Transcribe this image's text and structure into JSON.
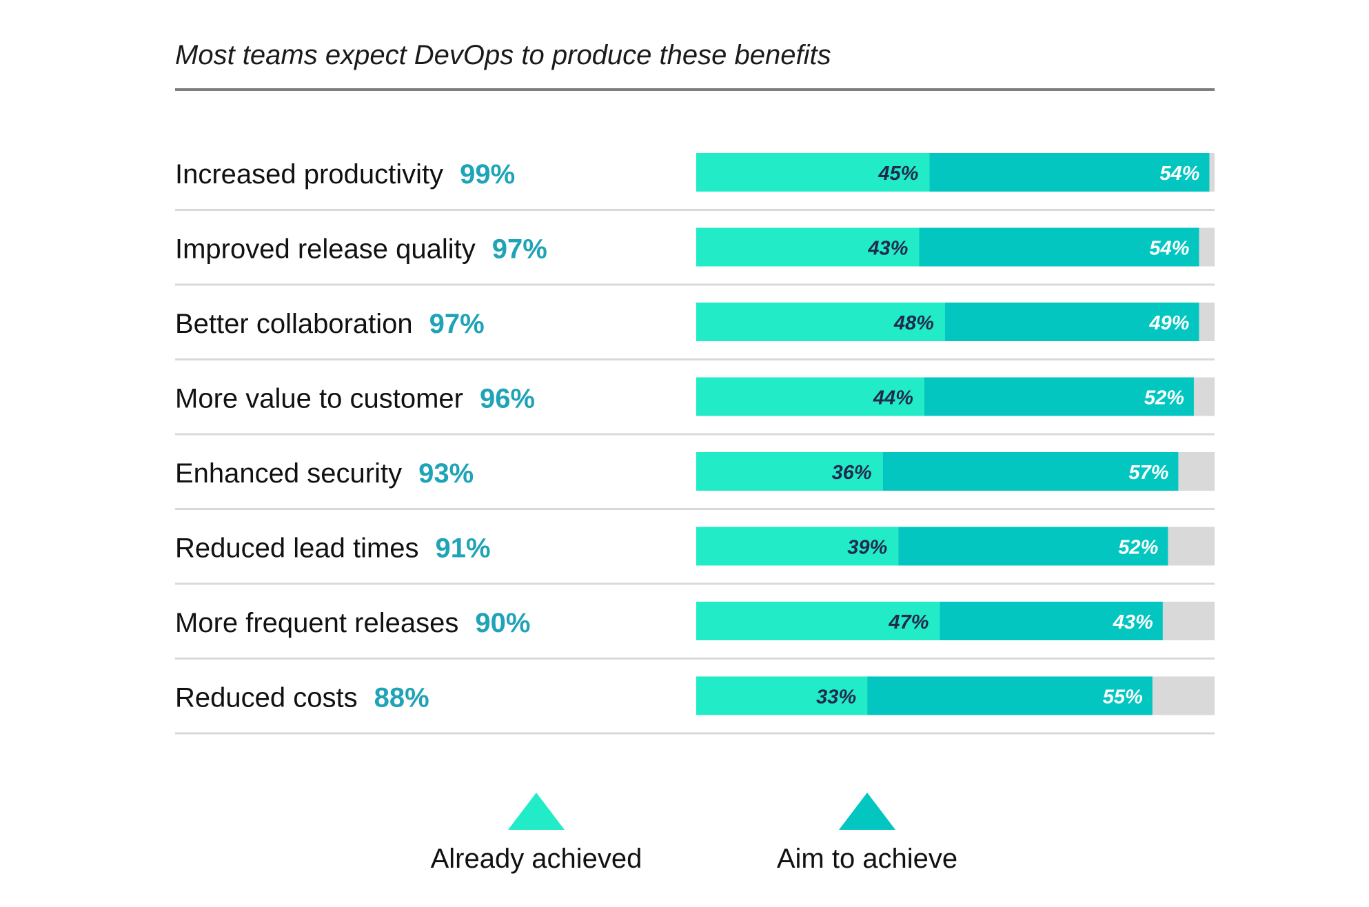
{
  "title": "Most teams expect DevOps to produce these benefits",
  "colors": {
    "already": "#22EBC7",
    "aim": "#03C6C1",
    "remainder": "#D9D9D9",
    "total_label": "#1FA3B7",
    "already_label": "#1F2A4E",
    "aim_label": "#FFFFFF",
    "row_rule": "#D9D9D9"
  },
  "chart_data": {
    "type": "bar",
    "orientation": "horizontal",
    "stacked": true,
    "title": "Most teams expect DevOps to produce these benefits",
    "categories": [
      "Increased productivity",
      "Improved release quality",
      "Better collaboration",
      "More value to customer",
      "Enhanced security",
      "Reduced lead times",
      "More frequent releases",
      "Reduced costs"
    ],
    "totals": [
      "99%",
      "97%",
      "97%",
      "96%",
      "93%",
      "91%",
      "90%",
      "88%"
    ],
    "series": [
      {
        "name": "Already achieved",
        "values": [
          45,
          43,
          48,
          44,
          36,
          39,
          47,
          33
        ]
      },
      {
        "name": "Aim to achieve",
        "values": [
          54,
          54,
          49,
          52,
          57,
          52,
          43,
          55
        ]
      }
    ],
    "xlim": [
      0,
      100
    ],
    "legend_position": "bottom"
  },
  "legend": [
    {
      "label": "Already achieved"
    },
    {
      "label": "Aim to achieve"
    }
  ]
}
